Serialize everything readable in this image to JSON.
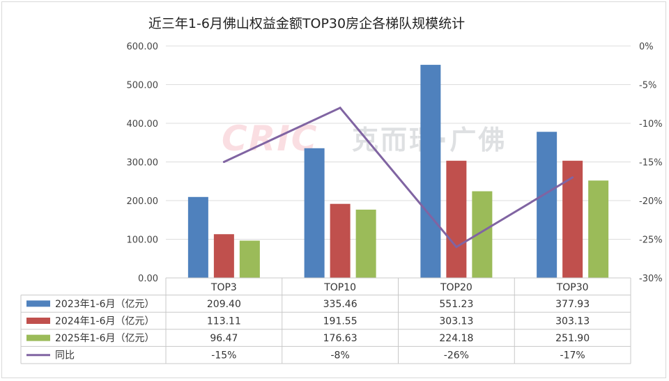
{
  "chart_data": {
    "type": "bar",
    "title": "近三年1-6月佛山权益金额TOP30房企各梯队规模统计",
    "categories": [
      "TOP3",
      "TOP10",
      "TOP20",
      "TOP30"
    ],
    "series": [
      {
        "name": "2023年1-6月（亿元）",
        "type": "bar",
        "axis": "left",
        "color": "#4F81BD",
        "values": [
          209.4,
          335.46,
          551.23,
          377.93
        ],
        "labels": [
          "209.40",
          "335.46",
          "551.23",
          "377.93"
        ]
      },
      {
        "name": "2024年1-6月（亿元）",
        "type": "bar",
        "axis": "left",
        "color": "#C0504D",
        "values": [
          113.11,
          191.55,
          303.13,
          303.13
        ],
        "labels": [
          "113.11",
          "191.55",
          "303.13",
          "303.13"
        ]
      },
      {
        "name": "2025年1-6月（亿元）",
        "type": "bar",
        "axis": "left",
        "color": "#9BBB59",
        "values": [
          96.47,
          176.63,
          224.18,
          251.9
        ],
        "labels": [
          "96.47",
          "176.63",
          "224.18",
          "251.90"
        ]
      },
      {
        "name": "同比",
        "type": "line",
        "axis": "right",
        "color": "#8064A2",
        "values": [
          -15,
          -8,
          -26,
          -17
        ],
        "labels": [
          "-15%",
          "-8%",
          "-26%",
          "-17%"
        ]
      }
    ],
    "y_left": {
      "min": 0,
      "max": 600,
      "step": 100,
      "ticks": [
        "0.00",
        "100.00",
        "200.00",
        "300.00",
        "400.00",
        "500.00",
        "600.00"
      ]
    },
    "y_right": {
      "min": -30,
      "max": 0,
      "step": 5,
      "ticks": [
        "-30%",
        "-25%",
        "-20%",
        "-15%",
        "-10%",
        "-5%",
        "0%"
      ]
    },
    "grid": true,
    "legend": "data-table",
    "watermark": {
      "brand": "CRIC",
      "text": "克而瑞·广佛"
    }
  }
}
